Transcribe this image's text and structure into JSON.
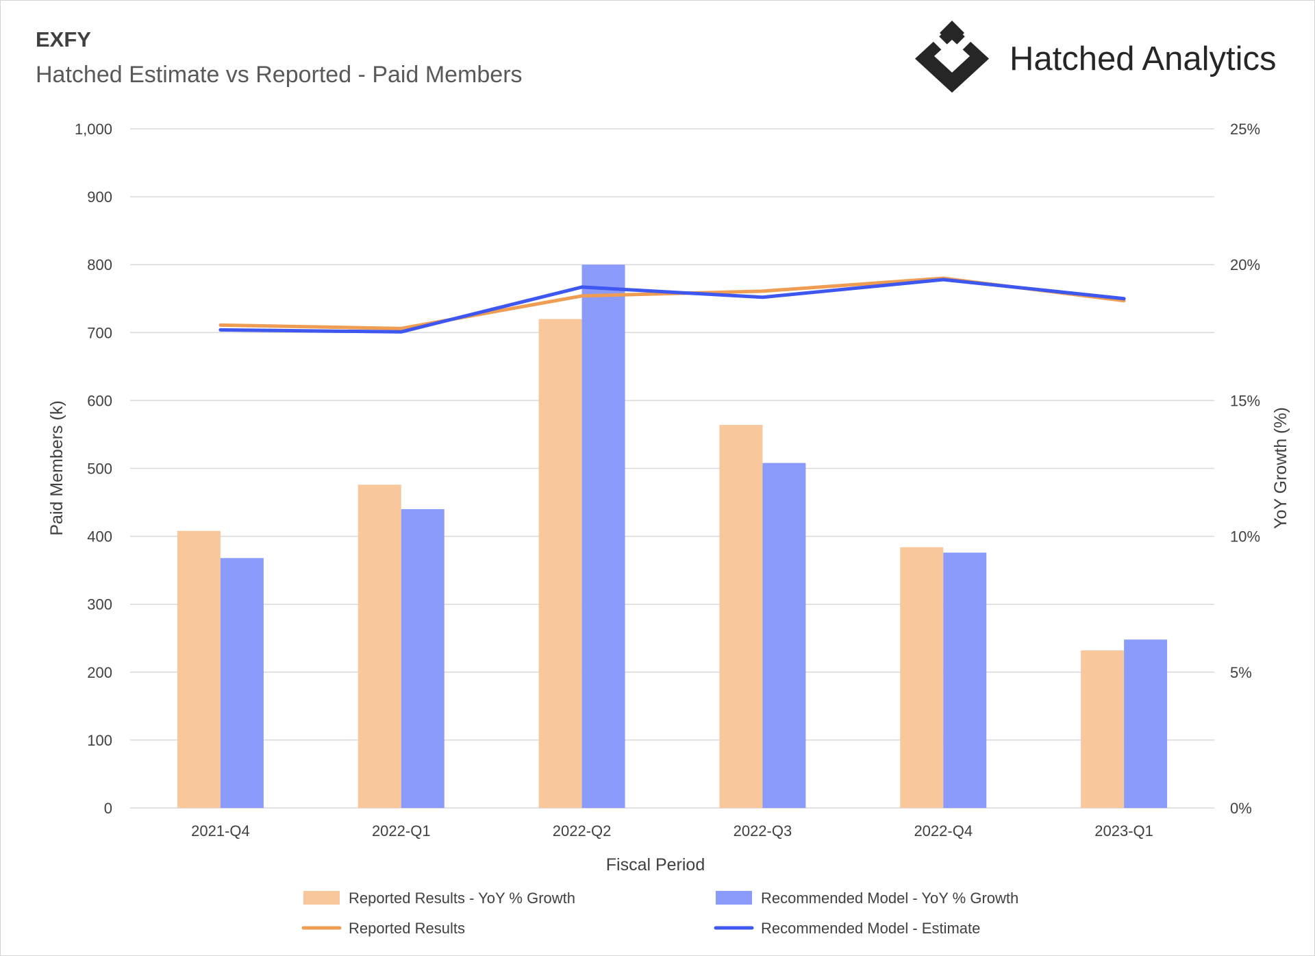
{
  "header": {
    "ticker": "EXFY",
    "subtitle": "Hatched Estimate vs Reported - Paid Members",
    "brand_name": "Hatched Analytics",
    "brand_logo_icon": "diamond-chevron-logo-icon"
  },
  "colors": {
    "reported_bar": "#F8C79C",
    "model_bar": "#8A9BFB",
    "reported_line": "#EE9D52",
    "model_line": "#3D57F0",
    "grid": "#D9D9D9",
    "axis_text": "#404040"
  },
  "chart_data": {
    "type": "bar",
    "categories": [
      "2021-Q4",
      "2022-Q1",
      "2022-Q2",
      "2022-Q3",
      "2022-Q4",
      "2023-Q1"
    ],
    "xlabel": "Fiscal Period",
    "ylabel": "Paid Members (k)",
    "y2label": "YoY Growth (%)",
    "ylim": [
      0,
      1000
    ],
    "y2lim": [
      0,
      25
    ],
    "y_ticks": [
      "0",
      "100",
      "200",
      "300",
      "400",
      "500",
      "600",
      "700",
      "800",
      "900",
      "1,000"
    ],
    "y2_ticks": [
      "0%",
      "5%",
      "10%",
      "15%",
      "20%",
      "25%"
    ],
    "grid": true,
    "legend_position": "bottom",
    "series": [
      {
        "name": "Reported Results - YoY % Growth",
        "type": "bar",
        "axis": "right",
        "values": [
          10.2,
          11.9,
          18.0,
          14.1,
          9.6,
          5.8
        ]
      },
      {
        "name": "Recommended Model - YoY % Growth",
        "type": "bar",
        "axis": "right",
        "values": [
          9.2,
          11.0,
          20.0,
          12.7,
          9.4,
          6.2
        ]
      },
      {
        "name": "Reported Results",
        "type": "line",
        "axis": "left",
        "values": [
          711,
          706,
          754,
          761,
          780,
          747
        ]
      },
      {
        "name": "Recommended Model - Estimate",
        "type": "line",
        "axis": "left",
        "values": [
          704,
          701,
          767,
          752,
          778,
          750
        ]
      }
    ]
  }
}
